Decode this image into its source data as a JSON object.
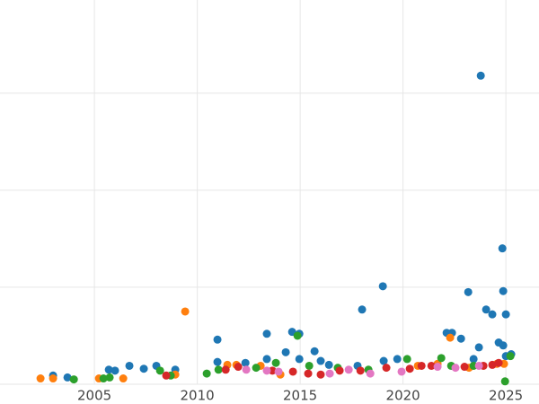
{
  "chart_data": {
    "type": "scatter",
    "grid": true,
    "xlim": [
      2000.41,
      2026.61
    ],
    "xticks": [
      2005,
      2010,
      2015,
      2020,
      2025
    ],
    "ylim": [
      0,
      3.96
    ],
    "yticks": [
      0,
      1,
      2,
      3
    ],
    "series": [
      {
        "color": "#1f77b4",
        "x": [
          2002.99,
          2003.69,
          2005.7,
          2006.0,
          2006.7,
          2007.4,
          2008.01,
          2008.93,
          2010.98,
          2010.98,
          2012.34,
          2013.38,
          2013.38,
          2014.3,
          2014.61,
          2014.96,
          2014.96,
          2015.7,
          2016.0,
          2016.4,
          2018.01,
          2017.79,
          2019.02,
          2019.06,
          2019.72,
          2022.12,
          2022.38,
          2022.82,
          2023.17,
          2023.43,
          2023.69,
          2023.78,
          2024.04,
          2024.34,
          2024.65,
          2024.83,
          2024.87,
          2024.87,
          2025.0,
          2025.0,
          2025.26
        ],
        "values": [
          0.09,
          0.07,
          0.15,
          0.14,
          0.19,
          0.16,
          0.19,
          0.15,
          0.46,
          0.23,
          0.22,
          0.52,
          0.26,
          0.33,
          0.54,
          0.52,
          0.26,
          0.34,
          0.24,
          0.2,
          0.77,
          0.19,
          1.01,
          0.24,
          0.26,
          0.53,
          0.53,
          0.47,
          0.95,
          0.26,
          0.38,
          3.18,
          0.77,
          0.72,
          0.43,
          1.4,
          0.96,
          0.4,
          0.72,
          0.29,
          0.31
        ]
      },
      {
        "color": "#ff7f0e",
        "x": [
          2002.38,
          2002.99,
          2005.22,
          2006.4,
          2008.93,
          2009.41,
          2011.46,
          2011.9,
          2013.08,
          2014.04,
          2020.72,
          2022.29,
          2021.68,
          2023.21,
          2024.56,
          2024.91
        ],
        "values": [
          0.06,
          0.06,
          0.06,
          0.06,
          0.1,
          0.75,
          0.2,
          0.2,
          0.19,
          0.1,
          0.19,
          0.48,
          0.21,
          0.17,
          0.21,
          0.21
        ]
      },
      {
        "color": "#2ca02c",
        "x": [
          2004.0,
          2005.44,
          2005.74,
          2008.19,
          2008.71,
          2010.46,
          2011.03,
          2012.86,
          2013.82,
          2014.87,
          2015.44,
          2016.83,
          2018.32,
          2020.2,
          2021.86,
          2022.34,
          2023.43,
          2024.96,
          2025.22
        ],
        "values": [
          0.05,
          0.06,
          0.07,
          0.14,
          0.09,
          0.11,
          0.15,
          0.17,
          0.22,
          0.5,
          0.19,
          0.17,
          0.15,
          0.26,
          0.27,
          0.19,
          0.19,
          0.03,
          0.29
        ]
      },
      {
        "color": "#d62728",
        "x": [
          2008.49,
          2011.38,
          2011.99,
          2013.65,
          2014.65,
          2015.39,
          2016.0,
          2016.92,
          2017.93,
          2019.19,
          2020.33,
          2020.9,
          2021.38,
          2022.99,
          2023.91,
          2024.34,
          2024.65
        ],
        "values": [
          0.09,
          0.15,
          0.18,
          0.14,
          0.13,
          0.11,
          0.1,
          0.14,
          0.14,
          0.17,
          0.16,
          0.19,
          0.19,
          0.18,
          0.19,
          0.2,
          0.22
        ]
      },
      {
        "color": "#e377c2",
        "x": [
          2012.38,
          2013.38,
          2013.95,
          2016.44,
          2017.36,
          2018.41,
          2019.93,
          2021.68,
          2022.55,
          2023.69
        ],
        "values": [
          0.15,
          0.14,
          0.13,
          0.11,
          0.15,
          0.11,
          0.13,
          0.18,
          0.17,
          0.19
        ]
      }
    ]
  }
}
